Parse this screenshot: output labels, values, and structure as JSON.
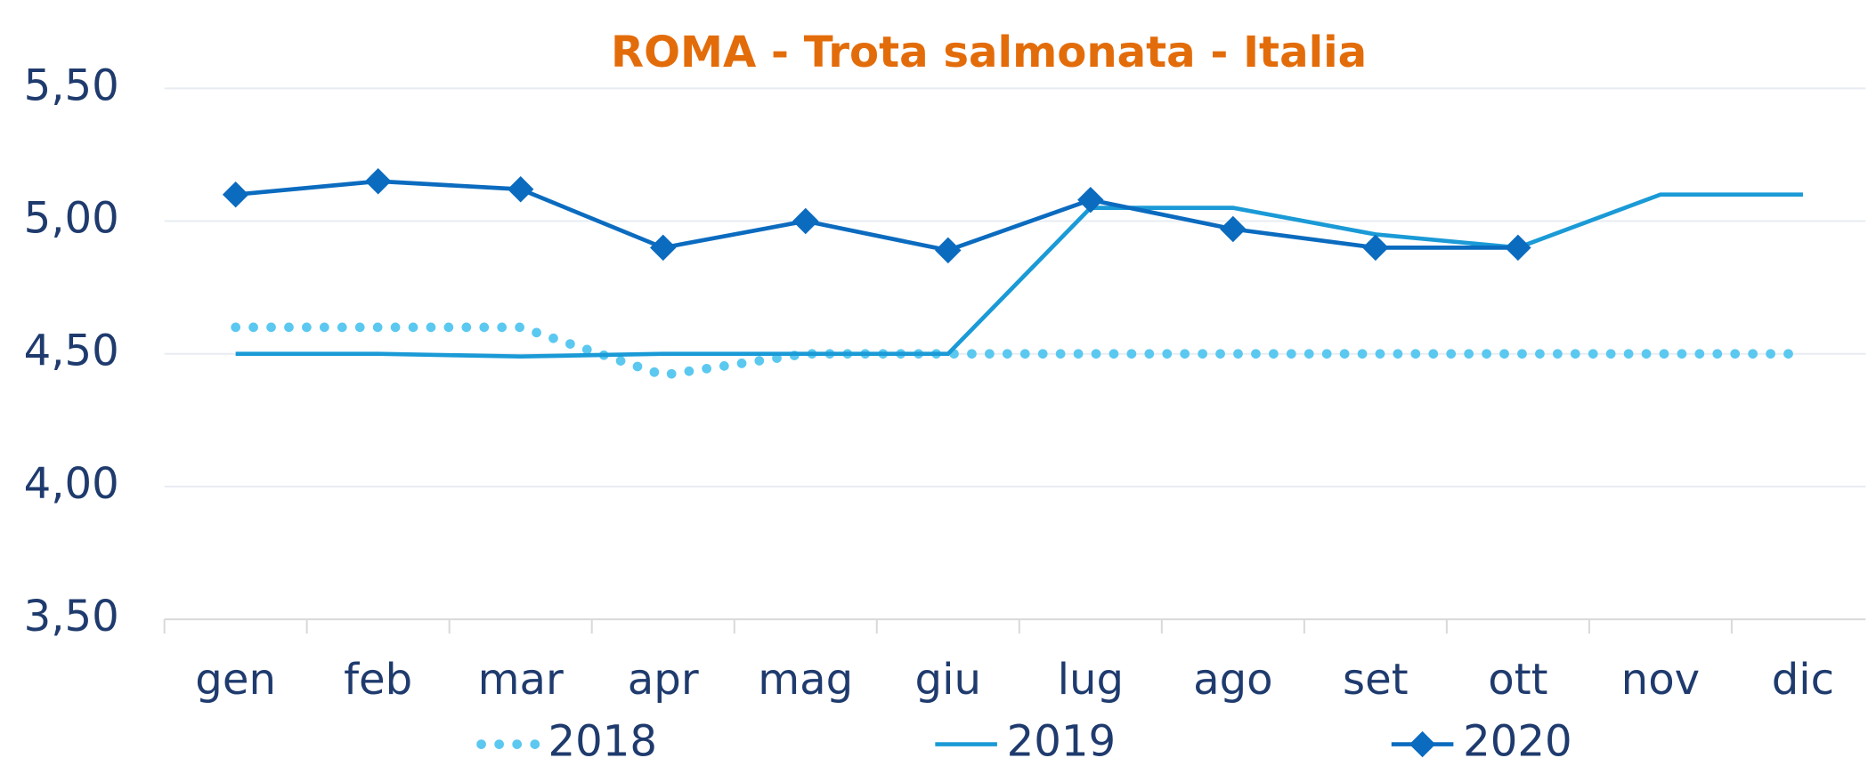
{
  "chart_data": {
    "type": "line",
    "title": "ROMA - Trota salmonata - Italia",
    "categories": [
      "gen",
      "feb",
      "mar",
      "apr",
      "mag",
      "giu",
      "lug",
      "ago",
      "set",
      "ott",
      "nov",
      "dic"
    ],
    "series": [
      {
        "name": "2018",
        "color": "#5bc8f0",
        "style": "dotted",
        "values": [
          4.6,
          4.6,
          4.6,
          4.42,
          4.5,
          4.5,
          4.5,
          4.5,
          4.5,
          4.5,
          4.5,
          4.5
        ]
      },
      {
        "name": "2019",
        "color": "#1a9ad6",
        "style": "solid",
        "values": [
          4.5,
          4.5,
          4.49,
          4.5,
          4.5,
          4.5,
          5.05,
          5.05,
          4.95,
          4.9,
          5.1,
          5.1
        ]
      },
      {
        "name": "2020",
        "color": "#0b6bbf",
        "style": "diamond",
        "values": [
          5.1,
          5.15,
          5.12,
          4.9,
          5.0,
          4.89,
          5.08,
          4.97,
          4.9,
          4.9,
          null,
          null
        ]
      }
    ],
    "ylim": [
      3.5,
      5.5
    ],
    "yticks": [
      {
        "value": 3.5,
        "label": "3,50"
      },
      {
        "value": 4.0,
        "label": "4,00"
      },
      {
        "value": 4.5,
        "label": "4,50"
      },
      {
        "value": 5.0,
        "label": "5,00"
      },
      {
        "value": 5.5,
        "label": "5,50"
      }
    ],
    "grid": true,
    "legend": "bottom"
  }
}
